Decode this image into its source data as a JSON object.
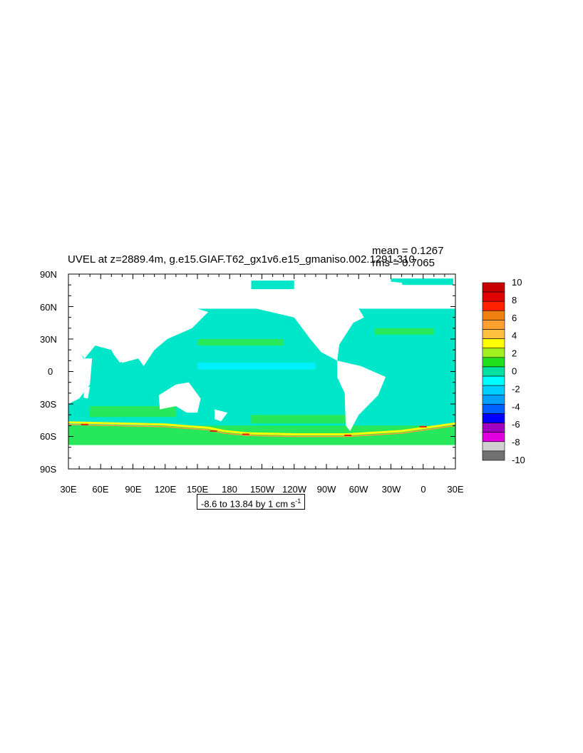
{
  "title": "UVEL at z=2889.4m, g.e15.GIAF.T62_gx1v6.e15_gmaniso.002.1291-310",
  "stats": {
    "mean": "mean = 0.1267",
    "rms": "rms = 0.7065"
  },
  "range_label": {
    "text": "-8.6 to 13.84 by 1 cm s",
    "superscript": "-1"
  },
  "colors": {
    "ocean_main": "#00e6c8",
    "ocean_alt": "#26e85a",
    "ocean_cyan": "#00f0ff",
    "jet_yellow": "#ffff00",
    "jet_orange": "#ffa030",
    "jet_red": "#e02010",
    "land": "#ffffff"
  },
  "chart_data": {
    "type": "heatmap",
    "variable": "UVEL",
    "xlim": [
      30,
      390
    ],
    "ylim": [
      -90,
      90
    ],
    "x_ticks": [
      "30E",
      "60E",
      "90E",
      "120E",
      "150E",
      "180",
      "150W",
      "120W",
      "90W",
      "60W",
      "30W",
      "0",
      "30E"
    ],
    "y_ticks": [
      "90N",
      "60N",
      "30N",
      "0",
      "30S",
      "60S",
      "90S"
    ],
    "colorbar": {
      "labels": [
        "10",
        "8",
        "6",
        "4",
        "2",
        "0",
        "-2",
        "-4",
        "-6",
        "-8",
        "-10"
      ],
      "colors": [
        "#c80000",
        "#e00000",
        "#ff2000",
        "#f08010",
        "#ffa030",
        "#ffc040",
        "#ffff00",
        "#a0f020",
        "#20e020",
        "#00e0a0",
        "#00ffff",
        "#00d0ff",
        "#00a0ff",
        "#0060ff",
        "#0000ff",
        "#a000c0",
        "#e000e0",
        "#d0d0d0",
        "#707070"
      ]
    }
  }
}
